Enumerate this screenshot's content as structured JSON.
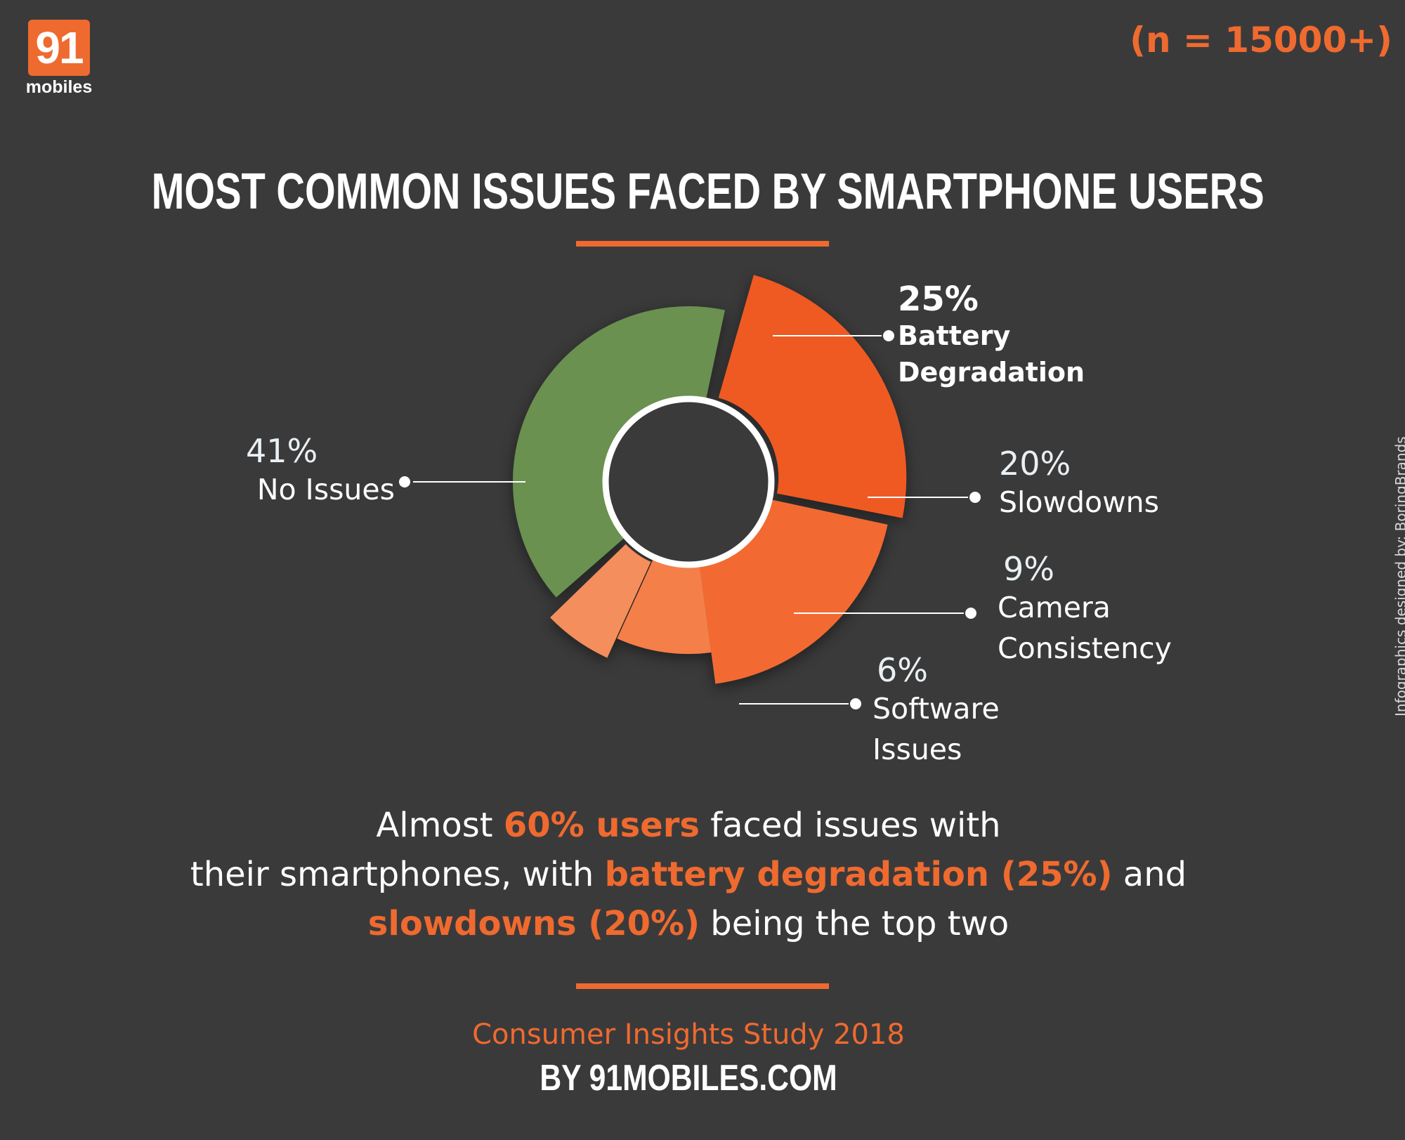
{
  "brand": {
    "logo_number": "91",
    "logo_word": "mobiles"
  },
  "sample_size": "(n = 15000+)",
  "title": "MOST COMMON ISSUES FACED BY SMARTPHONE USERS",
  "chart_data": {
    "type": "pie",
    "title": "MOST COMMON ISSUES FACED BY SMARTPHONE USERS",
    "unit": "%",
    "slices": [
      {
        "label": "Battery Degradation",
        "value": 25,
        "display": "25%",
        "color": "#ef5a22"
      },
      {
        "label": "Slowdowns",
        "value": 20,
        "display": "20%",
        "color": "#f26b30"
      },
      {
        "label": "Camera Consistency",
        "value": 9,
        "display": "9%",
        "color": "#f47f48"
      },
      {
        "label": "Software Issues",
        "value": 6,
        "display": "6%",
        "color": "#f48e5c"
      },
      {
        "label": "No Issues",
        "value": 41,
        "display": "41%",
        "color": "#6a9150"
      }
    ]
  },
  "labels": {
    "battery_pct": "25%",
    "battery_line1": "Battery",
    "battery_line2": "Degradation",
    "slow_pct": "20%",
    "slow_name": "Slowdowns",
    "camera_pct": "9%",
    "camera_line1": "Camera",
    "camera_line2": "Consistency",
    "software_pct": "6%",
    "software_line1": "Software",
    "software_line2": "Issues",
    "none_pct": "41%",
    "none_name": "No Issues"
  },
  "summary": {
    "p1": "Almost ",
    "h1": "60% users",
    "p2": " faced issues with",
    "p3": "their smartphones, with ",
    "h2": "battery degradation (25%)",
    "p4": " and",
    "h3": "slowdowns (20%)",
    "p5": " being the top two"
  },
  "footer": {
    "study": "Consumer Insights Study 2018",
    "byline": "BY 91MOBILES.COM"
  },
  "credit": "Infographics designed by: BoringBrands",
  "colors": {
    "accent": "#ef6a2f",
    "background": "#3b3a3b",
    "green": "#6a9150"
  }
}
